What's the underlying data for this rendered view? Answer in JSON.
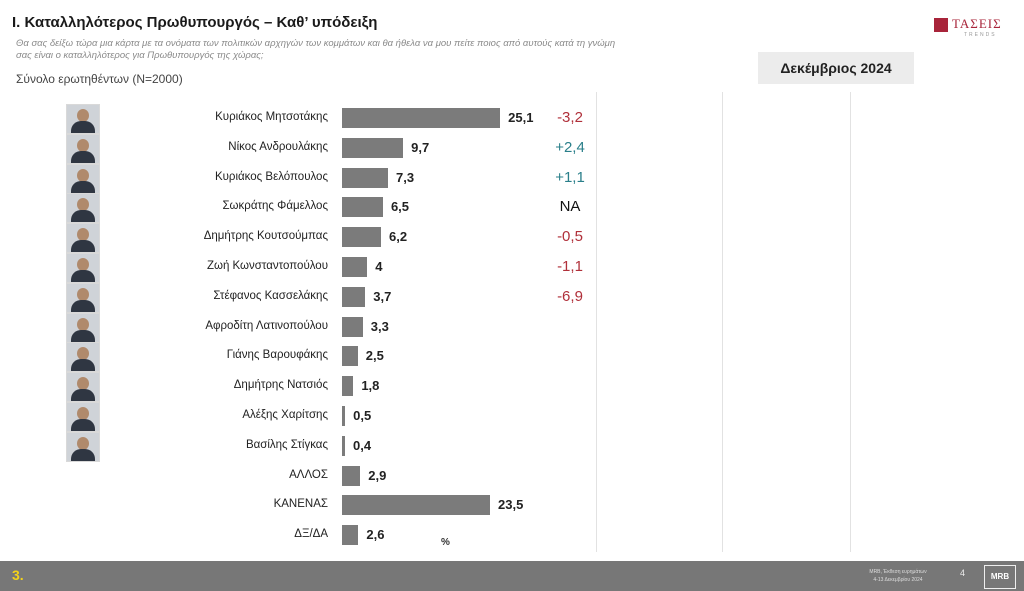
{
  "header": {
    "title": "I. Καταλληλότερος  Πρωθυπουργός – Καθ’ υπόδειξη",
    "question": "Θα σας δείξω τώρα μια κάρτα με τα ονόματα των πολιτικών αρχηγών των κομμάτων και θα ήθελα να μου πείτε ποιος από αυτούς κατά τη γνώμη σας είναι ο καταλληλότερος για Πρωθυπουργός της χώρας;",
    "base": "Σύνολο ερωτηθέντων (N=2000)",
    "date": "Δεκέμβριος 2024"
  },
  "logo": {
    "text": "ΤΑΣΕΙΣ",
    "sub": "TRENDS",
    "color": "#a8243a"
  },
  "chart_data": {
    "type": "bar",
    "orientation": "horizontal",
    "unit": "%",
    "categories": [
      "Κυριάκος Μητσοτάκης",
      "Νίκος Ανδρουλάκης",
      "Κυριάκος Βελόπουλος",
      "Σωκράτης Φάμελλος",
      "Δημήτρης Κουτσούμπας",
      "Ζωή Κωνσταντοπούλου",
      "Στέφανος Κασσελάκης",
      "Αφροδίτη Λατινοπούλου",
      "Γιάνης Βαρουφάκης",
      "Δημήτρης Νατσιός",
      "Αλέξης Χαρίτσης",
      "Βασίλης Στίγκας",
      "ΑΛΛΟΣ",
      "ΚΑΝΕΝΑΣ",
      "ΔΞ/ΔΑ"
    ],
    "values": [
      25.1,
      9.7,
      7.3,
      6.5,
      6.2,
      4,
      3.7,
      3.3,
      2.5,
      1.8,
      0.5,
      0.4,
      2.9,
      23.5,
      2.6
    ],
    "value_labels": [
      "25,1",
      "9,7",
      "7,3",
      "6,5",
      "6,2",
      "4",
      "3,7",
      "3,3",
      "2,5",
      "1,8",
      "0,5",
      "0,4",
      "2,9",
      "23,5",
      "2,6"
    ],
    "changes": [
      "-3,2",
      "+2,4",
      "+1,1",
      "NA",
      "-0,5",
      "-1,1",
      "-6,9",
      "",
      "",
      "",
      "",
      "",
      "",
      "",
      ""
    ],
    "change_colors": {
      "negative": "#b0303a",
      "positive": "#2a7f8a",
      "na": "#111111"
    },
    "bar_color": "#7b7b7b",
    "has_photo": [
      true,
      true,
      true,
      true,
      true,
      true,
      true,
      true,
      true,
      true,
      true,
      true,
      false,
      false,
      false
    ],
    "xlim": [
      0,
      30
    ],
    "axis_label": "%",
    "grid": true,
    "legend": "none"
  },
  "footer": {
    "slide_number": "3.",
    "note_line1": "MRB, Έκθεση ευρημάτων",
    "note_line2": "4-13 Δεκεμβρίου 2024",
    "page": "4",
    "logo_text": "MRB",
    "bg_color": "#777777",
    "number_color": "#f2d21a"
  }
}
